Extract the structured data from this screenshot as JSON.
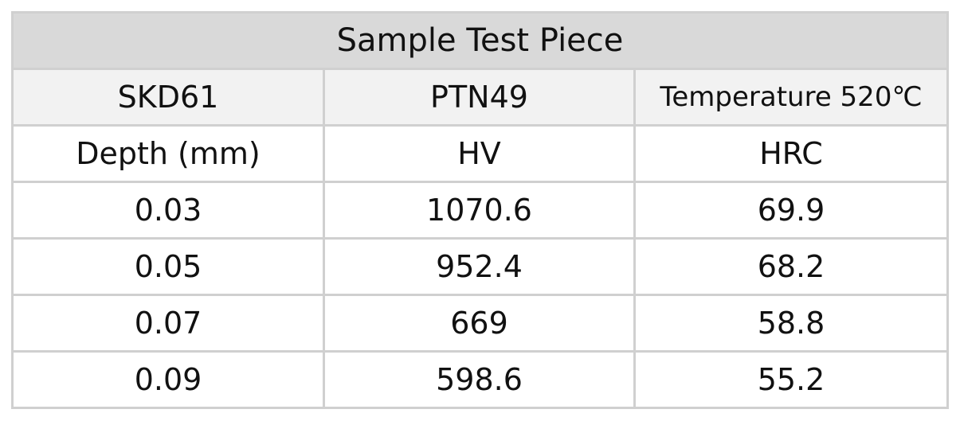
{
  "table": {
    "title": "Sample Test Piece",
    "header": [
      "SKD61",
      "PTN49",
      "Temperature 520℃"
    ],
    "columns": [
      "Depth (mm)",
      "HV",
      "HRC"
    ],
    "rows": [
      [
        "0.03",
        "1070.6",
        "69.9"
      ],
      [
        "0.05",
        "952.4",
        "68.2"
      ],
      [
        "0.07",
        "669",
        "58.8"
      ],
      [
        "0.09",
        "598.6",
        "55.2"
      ]
    ]
  }
}
